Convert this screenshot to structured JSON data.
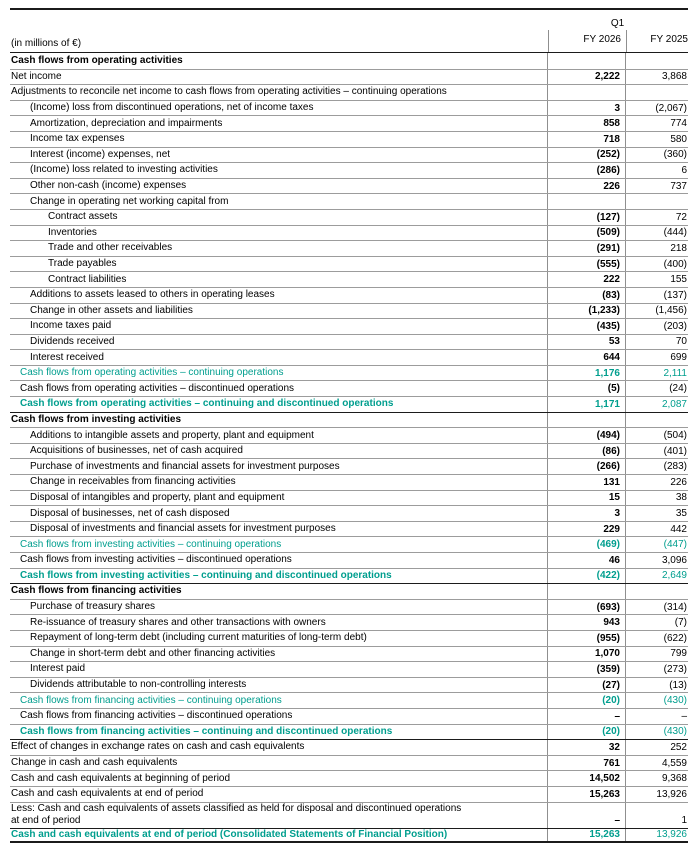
{
  "header": {
    "period_label": "Q1",
    "unit_label": "(in millions of €)",
    "col_fy2026": "FY 2026",
    "col_fy2025": "FY 2025"
  },
  "colors": {
    "accent": "#009E8E",
    "strong_line": "#1b1b1b",
    "separator_line": "#9c9c9c",
    "vertical_line": "#8f8f8f"
  },
  "rows": [
    {
      "label": "Cash flows from operating activities",
      "fy2026": "",
      "fy2025": "",
      "type": "sec",
      "indent": "i0"
    },
    {
      "label": "Net income",
      "fy2026": "2,222",
      "fy2025": "3,868",
      "type": "item",
      "indent": "i0"
    },
    {
      "label": "Adjustments to reconcile net income to cash flows from operating activities – continuing operations",
      "fy2026": "",
      "fy2025": "",
      "type": "item",
      "indent": "i0"
    },
    {
      "label": "(Income) loss from discontinued operations, net of income taxes",
      "fy2026": "3",
      "fy2025": "(2,067)",
      "type": "item",
      "indent": "i1"
    },
    {
      "label": "Amortization, depreciation and impairments",
      "fy2026": "858",
      "fy2025": "774",
      "type": "item",
      "indent": "i1"
    },
    {
      "label": "Income tax expenses",
      "fy2026": "718",
      "fy2025": "580",
      "type": "item",
      "indent": "i1"
    },
    {
      "label": "Interest (income) expenses, net",
      "fy2026": "(252)",
      "fy2025": "(360)",
      "type": "item",
      "indent": "i1"
    },
    {
      "label": "(Income) loss related to investing activities",
      "fy2026": "(286)",
      "fy2025": "6",
      "type": "item",
      "indent": "i1"
    },
    {
      "label": "Other non-cash (income) expenses",
      "fy2026": "226",
      "fy2025": "737",
      "type": "item",
      "indent": "i1"
    },
    {
      "label": "Change in operating net working capital from",
      "fy2026": "",
      "fy2025": "",
      "type": "item",
      "indent": "i1"
    },
    {
      "label": "Contract assets",
      "fy2026": "(127)",
      "fy2025": "72",
      "type": "item",
      "indent": "i2"
    },
    {
      "label": "Inventories",
      "fy2026": "(509)",
      "fy2025": "(444)",
      "type": "item",
      "indent": "i2"
    },
    {
      "label": "Trade and other receivables",
      "fy2026": "(291)",
      "fy2025": "218",
      "type": "item",
      "indent": "i2"
    },
    {
      "label": "Trade payables",
      "fy2026": "(555)",
      "fy2025": "(400)",
      "type": "item",
      "indent": "i2"
    },
    {
      "label": "Contract liabilities",
      "fy2026": "222",
      "fy2025": "155",
      "type": "item",
      "indent": "i2"
    },
    {
      "label": "Additions to assets leased to others in operating leases",
      "fy2026": "(83)",
      "fy2025": "(137)",
      "type": "item",
      "indent": "i1"
    },
    {
      "label": "Change in other assets and liabilities",
      "fy2026": "(1,233)",
      "fy2025": "(1,456)",
      "type": "item",
      "indent": "i1"
    },
    {
      "label": "Income taxes paid",
      "fy2026": "(435)",
      "fy2025": "(203)",
      "type": "item",
      "indent": "i1"
    },
    {
      "label": "Dividends received",
      "fy2026": "53",
      "fy2025": "70",
      "type": "item",
      "indent": "i1"
    },
    {
      "label": "Interest received",
      "fy2026": "644",
      "fy2025": "699",
      "type": "item",
      "indent": "i1"
    },
    {
      "label": "Cash flows from operating activities – continuing operations",
      "fy2026": "1,176",
      "fy2025": "2,111",
      "type": "sum",
      "indent": "is"
    },
    {
      "label": "Cash flows from operating activities – discontinued operations",
      "fy2026": "(5)",
      "fy2025": "(24)",
      "type": "item",
      "indent": "is"
    },
    {
      "label": "Cash flows from operating activities – continuing and discontinued operations",
      "fy2026": "1,171",
      "fy2025": "2,087",
      "type": "sumb",
      "indent": "is"
    },
    {
      "label": "Cash flows from investing activities",
      "fy2026": "",
      "fy2025": "",
      "type": "sec",
      "indent": "i0",
      "strong_top": true
    },
    {
      "label": "Additions to intangible assets and property, plant and equipment",
      "fy2026": "(494)",
      "fy2025": "(504)",
      "type": "item",
      "indent": "i1"
    },
    {
      "label": "Acquisitions of businesses, net of cash acquired",
      "fy2026": "(86)",
      "fy2025": "(401)",
      "type": "item",
      "indent": "i1"
    },
    {
      "label": "Purchase of investments and financial assets for investment purposes",
      "fy2026": "(266)",
      "fy2025": "(283)",
      "type": "item",
      "indent": "i1"
    },
    {
      "label": "Change in receivables from financing activities",
      "fy2026": "131",
      "fy2025": "226",
      "type": "item",
      "indent": "i1"
    },
    {
      "label": "Disposal of intangibles and property, plant and equipment",
      "fy2026": "15",
      "fy2025": "38",
      "type": "item",
      "indent": "i1"
    },
    {
      "label": "Disposal of businesses, net of cash disposed",
      "fy2026": "3",
      "fy2025": "35",
      "type": "item",
      "indent": "i1"
    },
    {
      "label": "Disposal of investments and financial assets for investment purposes",
      "fy2026": "229",
      "fy2025": "442",
      "type": "item",
      "indent": "i1"
    },
    {
      "label": "Cash flows from investing activities – continuing operations",
      "fy2026": "(469)",
      "fy2025": "(447)",
      "type": "sum",
      "indent": "is"
    },
    {
      "label": "Cash flows from investing activities – discontinued operations",
      "fy2026": "46",
      "fy2025": "3,096",
      "type": "item",
      "indent": "is"
    },
    {
      "label": "Cash flows from investing activities – continuing and discontinued operations",
      "fy2026": "(422)",
      "fy2025": "2,649",
      "type": "sumb",
      "indent": "is"
    },
    {
      "label": "Cash flows from financing activities",
      "fy2026": "",
      "fy2025": "",
      "type": "sec",
      "indent": "i0",
      "strong_top": true
    },
    {
      "label": "Purchase of treasury shares",
      "fy2026": "(693)",
      "fy2025": "(314)",
      "type": "item",
      "indent": "i1"
    },
    {
      "label": "Re-issuance of treasury shares and other transactions with owners",
      "fy2026": "943",
      "fy2025": "(7)",
      "type": "item",
      "indent": "i1"
    },
    {
      "label": "Repayment of long-term debt (including current maturities of long-term debt)",
      "fy2026": "(955)",
      "fy2025": "(622)",
      "type": "item",
      "indent": "i1"
    },
    {
      "label": "Change in short-term debt and other financing activities",
      "fy2026": "1,070",
      "fy2025": "799",
      "type": "item",
      "indent": "i1"
    },
    {
      "label": "Interest paid",
      "fy2026": "(359)",
      "fy2025": "(273)",
      "type": "item",
      "indent": "i1"
    },
    {
      "label": "Dividends attributable to non-controlling interests",
      "fy2026": "(27)",
      "fy2025": "(13)",
      "type": "item",
      "indent": "i1"
    },
    {
      "label": "Cash flows from financing activities – continuing operations",
      "fy2026": "(20)",
      "fy2025": "(430)",
      "type": "sum",
      "indent": "is"
    },
    {
      "label": "Cash flows from financing activities – discontinued operations",
      "fy2026": "–",
      "fy2025": "–",
      "type": "item",
      "indent": "is"
    },
    {
      "label": "Cash flows from financing activities – continuing and discontinued operations",
      "fy2026": "(20)",
      "fy2025": "(430)",
      "type": "sumb",
      "indent": "is"
    },
    {
      "label": "Effect of changes in exchange rates on cash and cash equivalents",
      "fy2026": "32",
      "fy2025": "252",
      "type": "item",
      "indent": "i0",
      "strong_top": true
    },
    {
      "label": "Change in cash and cash equivalents",
      "fy2026": "761",
      "fy2025": "4,559",
      "type": "item",
      "indent": "i0"
    },
    {
      "label": "Cash and cash equivalents at beginning of period",
      "fy2026": "14,502",
      "fy2025": "9,368",
      "type": "item",
      "indent": "i0"
    },
    {
      "label": "Cash and cash equivalents at end of period",
      "fy2026": "15,263",
      "fy2025": "13,926",
      "type": "item",
      "indent": "i0"
    },
    {
      "label": "Less: Cash and cash equivalents of assets classified as held for disposal and discontinued operations\nat end of period",
      "fy2026": "–",
      "fy2025": "1",
      "type": "item",
      "indent": "i0",
      "twoline": true
    },
    {
      "label": "Cash and cash equivalents at end of period (Consolidated Statements of Financial Position)",
      "fy2026": "15,263",
      "fy2025": "13,926",
      "type": "sumb",
      "indent": "i0",
      "strong_top": true,
      "last": true
    }
  ]
}
